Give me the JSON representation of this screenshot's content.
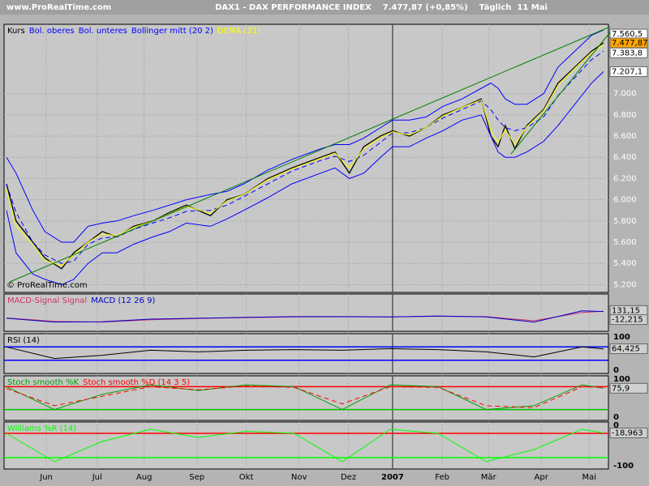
{
  "header": {
    "site": "www.ProRealTime.com",
    "title": "DAX1 - DAX PERFORMANCE INDEX    7.477,87 (+0,85%)    Täglich  11 Mai"
  },
  "chart_data": [
    {
      "type": "line",
      "watermark": "© ProRealTime.com",
      "x": [
        0,
        4,
        11,
        16,
        23,
        28,
        34,
        40,
        46,
        53,
        61,
        68,
        75,
        85,
        92,
        99,
        109,
        119,
        131,
        137,
        143,
        149,
        156,
        161,
        168,
        175,
        182,
        190,
        198,
        202,
        205,
        208,
        212,
        217,
        224,
        230,
        237,
        244,
        249
      ],
      "xlim": [
        0,
        250
      ],
      "xticks": [
        {
          "value": 16.6,
          "label": "Jun"
        },
        {
          "value": 37.8,
          "label": "Jul"
        },
        {
          "value": 57.4,
          "label": "Aug"
        },
        {
          "value": 79.4,
          "label": "Sep"
        },
        {
          "value": 100,
          "label": "Okt"
        },
        {
          "value": 122,
          "label": "Nov"
        },
        {
          "value": 142.6,
          "label": "Dez"
        },
        {
          "value": 161,
          "label": "2007"
        },
        {
          "value": 181.7,
          "label": "Feb"
        },
        {
          "value": 201,
          "label": "Mär"
        },
        {
          "value": 223,
          "label": "Apr"
        },
        {
          "value": 243,
          "label": "Mai"
        }
      ],
      "ylim": [
        5150,
        7630
      ],
      "yticks": [
        {
          "value": 5200,
          "label": "5.200"
        },
        {
          "value": 5400,
          "label": "5.400"
        },
        {
          "value": 5600,
          "label": "5.600"
        },
        {
          "value": 5800,
          "label": "5.800"
        },
        {
          "value": 6000,
          "label": "6.000"
        },
        {
          "value": 6200,
          "label": "6.200"
        },
        {
          "value": 6400,
          "label": "6.400"
        },
        {
          "value": 6600,
          "label": "6.600"
        },
        {
          "value": 6800,
          "label": "6.800"
        },
        {
          "value": 7000,
          "label": "7.000"
        }
      ],
      "series": [
        {
          "name": "Kurs",
          "color": "#000000",
          "values": [
            6150,
            5800,
            5600,
            5450,
            5350,
            5500,
            5600,
            5700,
            5650,
            5750,
            5800,
            5880,
            5950,
            5850,
            6000,
            6050,
            6200,
            6300,
            6400,
            6450,
            6250,
            6500,
            6600,
            6650,
            6600,
            6680,
            6800,
            6870,
            6950,
            6600,
            6500,
            6700,
            6480,
            6700,
            6850,
            7100,
            7250,
            7400,
            7478
          ]
        },
        {
          "name": "Bol. oberes",
          "color": "#0000ff",
          "values": [
            6400,
            6250,
            5900,
            5700,
            5600,
            5600,
            5750,
            5780,
            5800,
            5850,
            5900,
            5950,
            6000,
            6050,
            6080,
            6150,
            6280,
            6380,
            6480,
            6520,
            6520,
            6580,
            6680,
            6750,
            6750,
            6780,
            6880,
            6950,
            7050,
            7100,
            7050,
            6950,
            6900,
            6900,
            7000,
            7250,
            7400,
            7550,
            7600
          ]
        },
        {
          "name": "Bol. unteres",
          "color": "#0000ff",
          "values": [
            5900,
            5500,
            5300,
            5250,
            5200,
            5250,
            5400,
            5500,
            5500,
            5580,
            5650,
            5700,
            5780,
            5750,
            5820,
            5900,
            6020,
            6150,
            6250,
            6300,
            6200,
            6250,
            6400,
            6500,
            6500,
            6580,
            6650,
            6750,
            6800,
            6600,
            6450,
            6400,
            6400,
            6450,
            6550,
            6700,
            6900,
            7100,
            7207
          ]
        },
        {
          "name": "Bollinger mitt (20 2)",
          "color": "#0000ff",
          "dash": true,
          "values": [
            6150,
            5880,
            5600,
            5480,
            5400,
            5420,
            5580,
            5640,
            5650,
            5720,
            5780,
            5830,
            5890,
            5900,
            5950,
            6030,
            6150,
            6270,
            6370,
            6410,
            6360,
            6420,
            6540,
            6630,
            6630,
            6680,
            6770,
            6850,
            6930,
            6850,
            6750,
            6680,
            6650,
            6680,
            6780,
            6980,
            7150,
            7320,
            7400
          ]
        },
        {
          "name": "DEMA (21)",
          "color": "#ffff00",
          "values": [
            6100,
            5750,
            5580,
            5430,
            5380,
            5480,
            5600,
            5680,
            5660,
            5740,
            5800,
            5870,
            5940,
            5870,
            5990,
            6050,
            6190,
            6290,
            6390,
            6440,
            6300,
            6480,
            6590,
            6640,
            6610,
            6680,
            6790,
            6870,
            6940,
            6650,
            6540,
            6660,
            6520,
            6690,
            6840,
            7080,
            7240,
            7390,
            7460
          ]
        }
      ],
      "markers": [
        {
          "value": 7560.5,
          "label": "7.560,5",
          "color": "#ffffff"
        },
        {
          "value": 7477.87,
          "label": "7.477,87",
          "color": "#ffa500"
        },
        {
          "value": 7383.8,
          "label": "7.383,8",
          "color": "#ffffff"
        },
        {
          "value": 7207.1,
          "label": "7.207,1",
          "color": "#ffffff"
        }
      ]
    },
    {
      "type": "line",
      "x": [
        0,
        20,
        40,
        60,
        80,
        100,
        120,
        140,
        160,
        180,
        200,
        220,
        240,
        249
      ],
      "xlim": [
        0,
        250
      ],
      "ylim": [
        -145,
        340
      ],
      "series": [
        {
          "name": "MACD-Signal Signal",
          "color": "#d0306a",
          "values": [
            15,
            -40,
            -50,
            -15,
            5,
            20,
            30,
            33,
            30,
            40,
            35,
            -30,
            100,
            120
          ]
        },
        {
          "name": "MACD (12 26 9)",
          "color": "#0000cc",
          "values": [
            10,
            -50,
            -45,
            -5,
            10,
            25,
            35,
            35,
            30,
            45,
            30,
            -50,
            125,
            115
          ]
        }
      ],
      "markers": [
        {
          "value": 131.15,
          "label": "131,15",
          "color": "#d0d0d0"
        },
        {
          "value": -12.215,
          "label": "-12,215",
          "color": "#d0d0d0"
        }
      ]
    },
    {
      "type": "line",
      "x": [
        0,
        20,
        40,
        60,
        80,
        100,
        120,
        140,
        160,
        180,
        200,
        220,
        240,
        249
      ],
      "xlim": [
        0,
        250
      ],
      "ylim": [
        0,
        100
      ],
      "yticks": [
        0,
        100
      ],
      "hlines": [
        {
          "value": 70,
          "color": "#0000ff"
        },
        {
          "value": 30,
          "color": "#0000ff"
        }
      ],
      "series": [
        {
          "name": "RSI (14)",
          "color": "#000000",
          "values": [
            70,
            35,
            45,
            60,
            55,
            60,
            62,
            60,
            65,
            62,
            55,
            40,
            70,
            64
          ]
        }
      ],
      "markers": [
        {
          "value": 64.425,
          "label": "64,425",
          "color": "#d0d0d0"
        }
      ]
    },
    {
      "type": "line",
      "x": [
        0,
        20,
        40,
        60,
        80,
        100,
        120,
        140,
        160,
        180,
        200,
        220,
        240,
        249
      ],
      "xlim": [
        0,
        250
      ],
      "ylim": [
        0,
        100
      ],
      "yticks": [
        0,
        100
      ],
      "hlines": [
        {
          "value": 80,
          "color": "#ff0000"
        },
        {
          "value": 20,
          "color": "#00c000"
        }
      ],
      "series": [
        {
          "name": "Stoch smooth %K",
          "color": "#00a000",
          "values": [
            80,
            20,
            60,
            85,
            70,
            85,
            80,
            20,
            85,
            80,
            20,
            30,
            85,
            76
          ]
        },
        {
          "name": "Stoch smooth %D (14 3 5)",
          "color": "#ff0000",
          "dash": true,
          "values": [
            75,
            30,
            55,
            80,
            72,
            82,
            78,
            35,
            80,
            78,
            30,
            25,
            80,
            78
          ]
        }
      ],
      "markers": [
        {
          "value": 75.9,
          "label": "75,9",
          "color": "#d0d0d0"
        }
      ]
    },
    {
      "type": "line",
      "x": [
        0,
        20,
        40,
        60,
        80,
        100,
        120,
        140,
        160,
        180,
        200,
        220,
        240,
        249
      ],
      "xlim": [
        0,
        250
      ],
      "ylim": [
        -100,
        0
      ],
      "yticks": [
        -100,
        0
      ],
      "hlines": [
        {
          "value": -20,
          "color": "#ff0000"
        },
        {
          "value": -80,
          "color": "#00ff00"
        }
      ],
      "series": [
        {
          "name": "Williams %R (14)",
          "color": "#00ff00",
          "values": [
            -20,
            -90,
            -40,
            -10,
            -30,
            -15,
            -20,
            -90,
            -10,
            -20,
            -90,
            -60,
            -10,
            -19
          ]
        }
      ],
      "markers": [
        {
          "value": -18.963,
          "label": "-18,963",
          "color": "#d0d0d0"
        }
      ]
    }
  ]
}
